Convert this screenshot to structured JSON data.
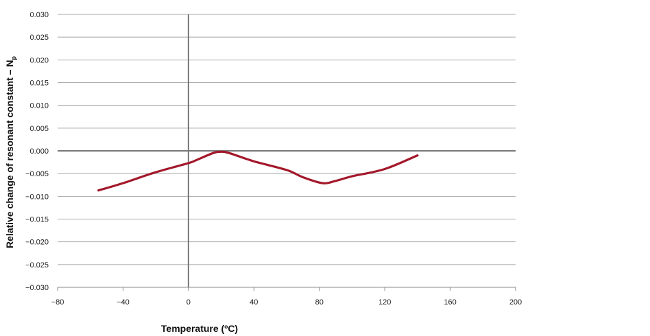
{
  "chart_data": {
    "type": "line",
    "title": "",
    "xlabel": "Temperature (ºC)",
    "ylabel": "Relative change of resonant constant – N",
    "ylabel_subscript": "p",
    "xlim": [
      -80,
      200
    ],
    "ylim": [
      -0.03,
      0.03
    ],
    "x_ticks": [
      -80,
      -40,
      0,
      40,
      80,
      120,
      160,
      200
    ],
    "x_tick_labels": [
      "−80",
      "−40",
      "0",
      "40",
      "80",
      "120",
      "160",
      "200"
    ],
    "y_ticks": [
      0.03,
      0.025,
      0.02,
      0.015,
      0.01,
      0.005,
      0.0,
      -0.005,
      -0.01,
      -0.015,
      -0.02,
      -0.025,
      -0.03
    ],
    "y_tick_labels": [
      "0.030",
      "0.025",
      "0.020",
      "0.015",
      "0.010",
      "0.005",
      "0.000",
      "−0.005",
      "−0.010",
      "−0.015",
      "−0.020",
      "−0.025",
      "−0.030"
    ],
    "grid": "horizontal",
    "series": [
      {
        "color": "#a3182b",
        "x": [
          -55,
          -40,
          -20,
          0,
          5,
          15,
          20,
          25,
          40,
          60,
          70,
          82,
          90,
          100,
          120,
          140
        ],
        "y": [
          -0.0087,
          -0.0071,
          -0.0047,
          -0.0027,
          -0.002,
          -0.0005,
          -0.0002,
          -0.0005,
          -0.0023,
          -0.0042,
          -0.0058,
          -0.0071,
          -0.0066,
          -0.0056,
          -0.004,
          -0.001
        ]
      }
    ]
  }
}
